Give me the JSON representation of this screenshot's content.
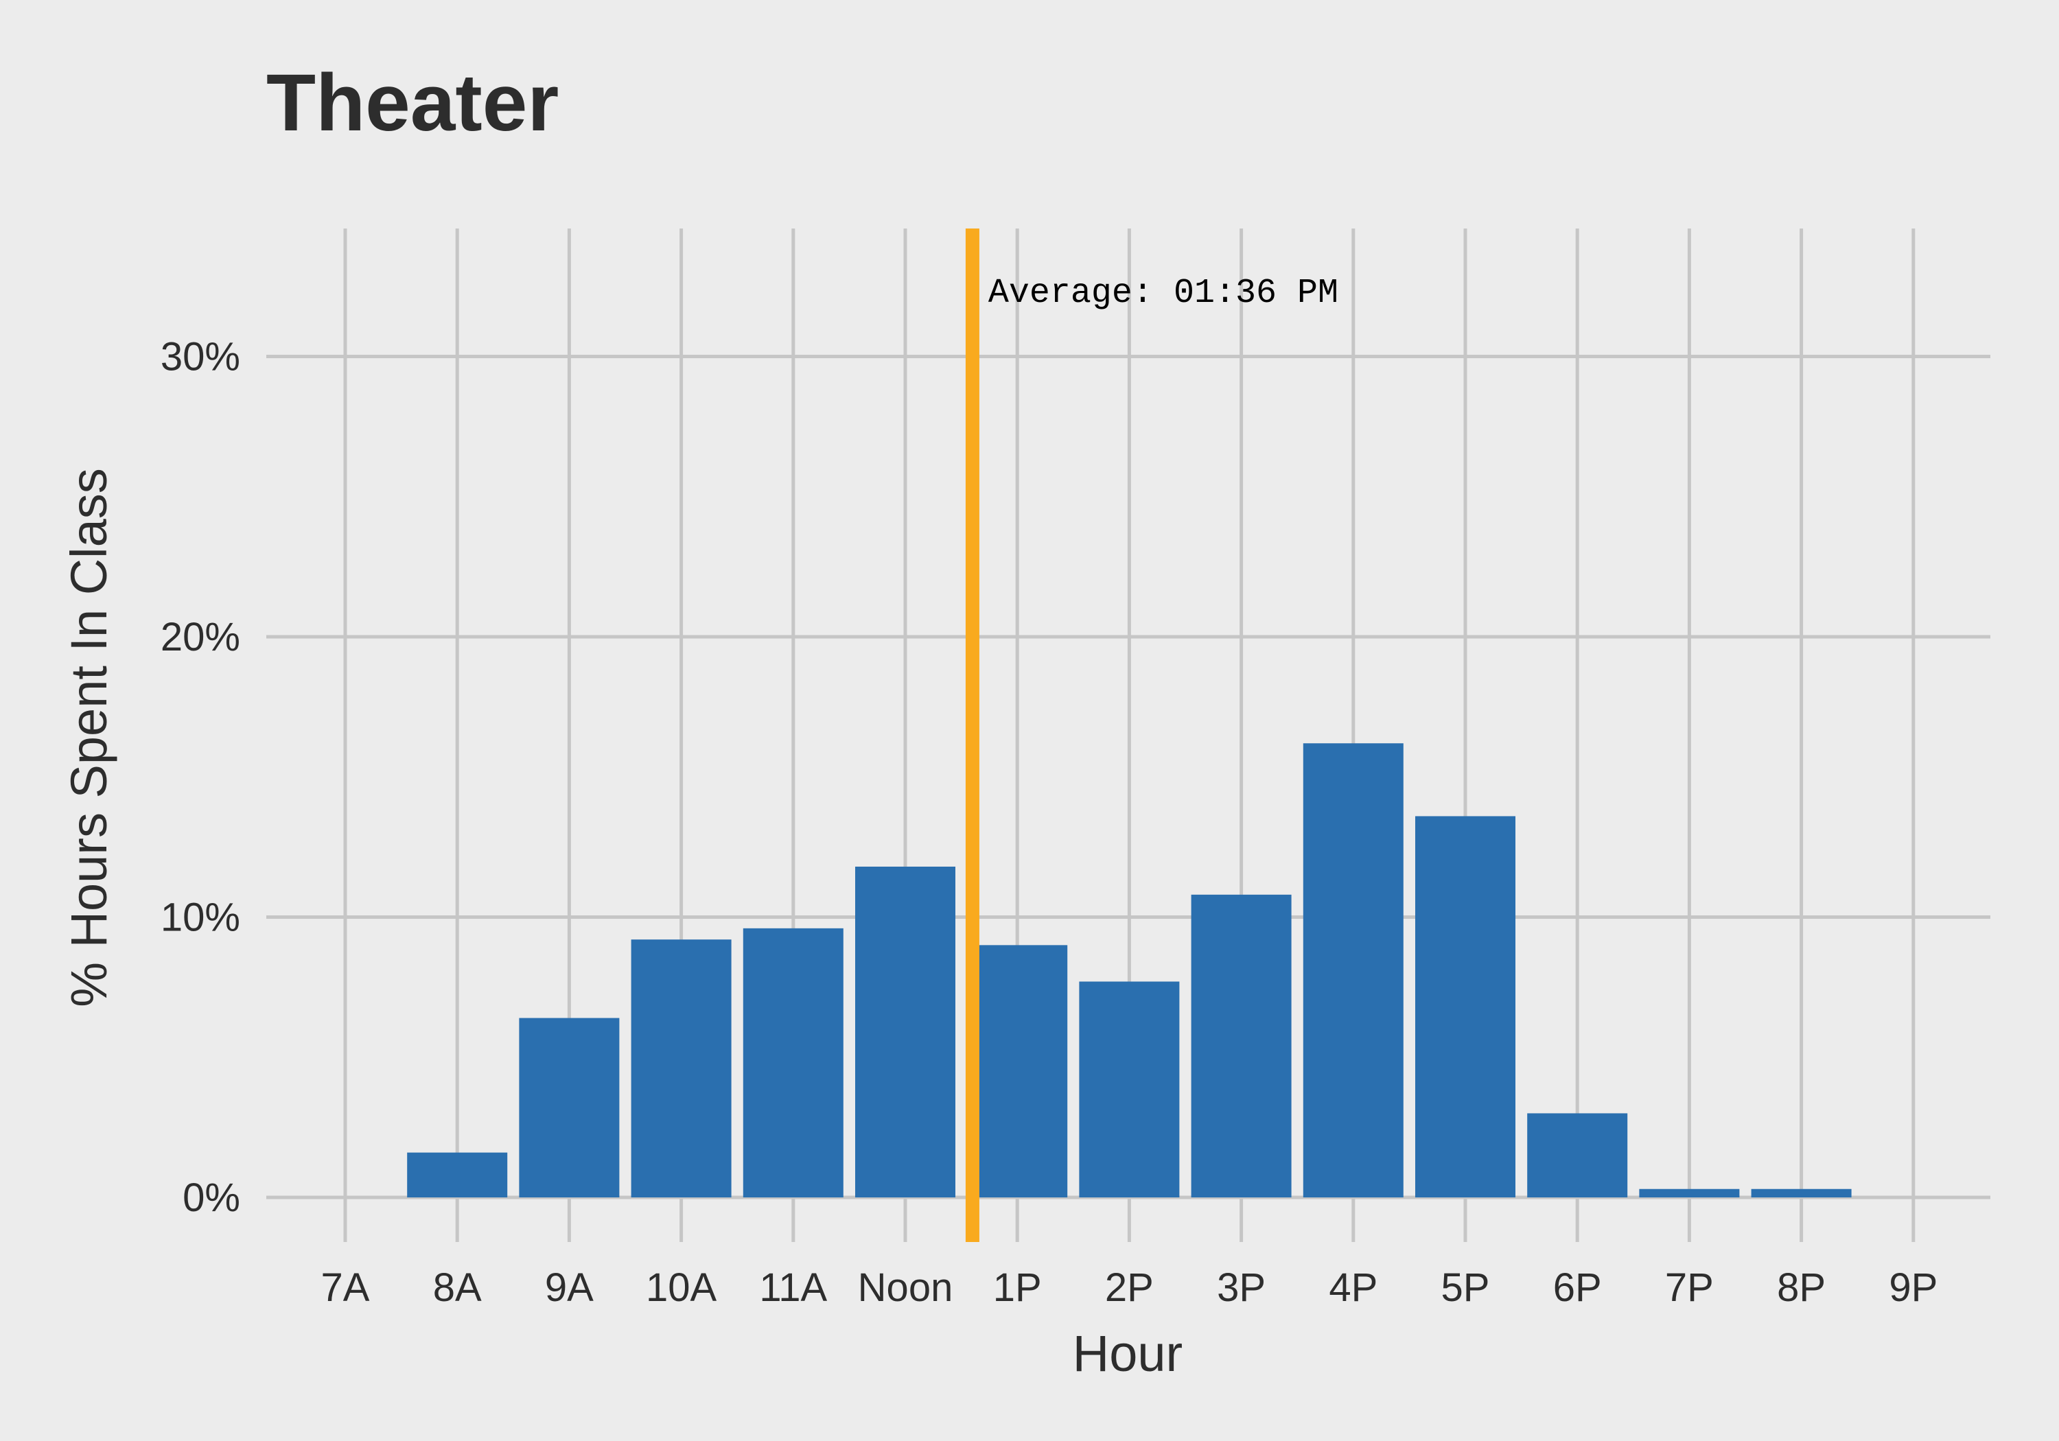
{
  "chart_data": {
    "type": "bar",
    "title": "Theater",
    "xlabel": "Hour",
    "ylabel": "% Hours Spent In Class",
    "categories": [
      "7A",
      "8A",
      "9A",
      "10A",
      "11A",
      "Noon",
      "1P",
      "2P",
      "3P",
      "4P",
      "5P",
      "6P",
      "7P",
      "8P",
      "9P"
    ],
    "values": [
      0,
      1.6,
      6.4,
      9.2,
      9.6,
      11.8,
      9.0,
      7.7,
      10.8,
      16.2,
      13.6,
      3.0,
      0.3,
      0.3,
      0
    ],
    "yticks": [
      {
        "value": 0,
        "label": "0%"
      },
      {
        "value": 10,
        "label": "10%"
      },
      {
        "value": 20,
        "label": "20%"
      },
      {
        "value": 30,
        "label": "30%"
      }
    ],
    "ylim": [
      -1.6,
      34.6
    ],
    "grid": true,
    "average_line": {
      "x_hour_index": 5.6,
      "label": "Average: 01:36 PM"
    },
    "colors": {
      "bar": "#2a6faf",
      "average_line": "#f9aa1e",
      "grid": "#c6c6c6",
      "background": "#ececec",
      "text": "#2d2d2d"
    }
  }
}
